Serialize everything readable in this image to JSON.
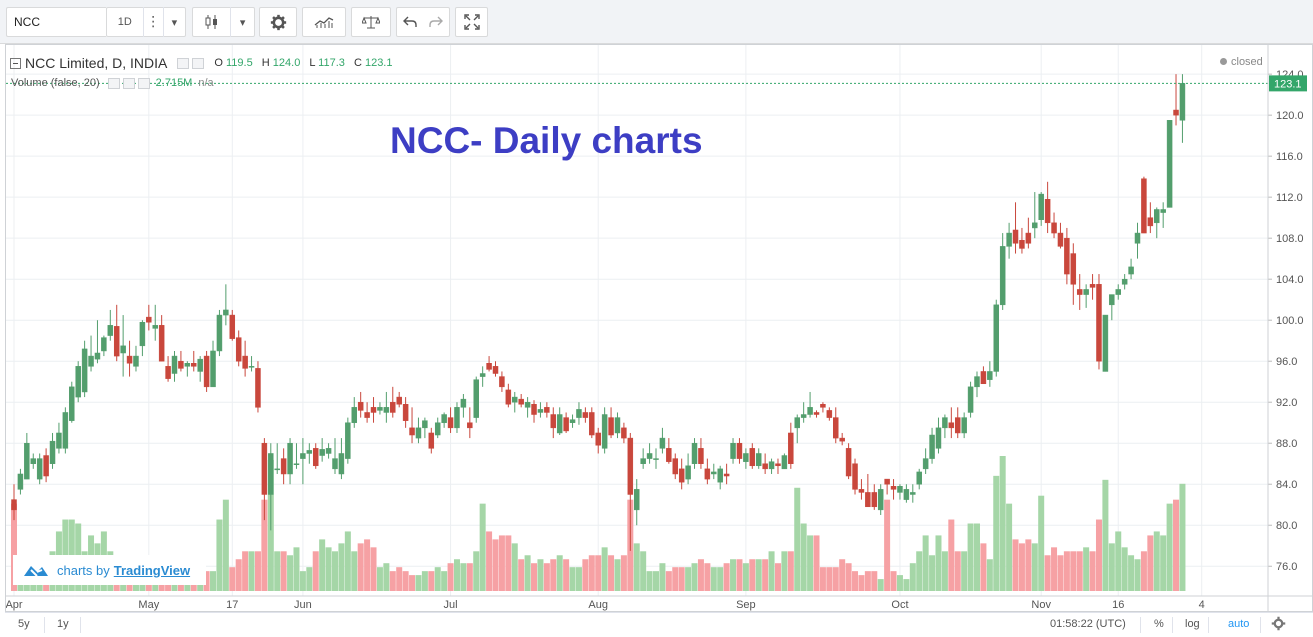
{
  "toolbar": {
    "symbol_value": "NCC",
    "interval": "1D",
    "menu_dots": "⋮",
    "dropdown": "▾"
  },
  "legend": {
    "title": "NCC Limited, D, INDIA",
    "open_label": "O",
    "open": "119.5",
    "high_label": "H",
    "high": "124.0",
    "low_label": "L",
    "low": "117.3",
    "close_label": "C",
    "close": "123.1",
    "volume_label": "Volume (false, 20)",
    "volume_value": "2.715M",
    "volume_ma": "n/a",
    "status": "closed"
  },
  "overlay_title": "NCC- Daily charts",
  "branding": {
    "prefix": "charts by",
    "name": "TradingView"
  },
  "bottom_bar": {
    "range_5y": "5y",
    "range_1y": "1y",
    "time": "01:58:22 (UTC)",
    "percent": "%",
    "log": "log",
    "auto": "auto"
  },
  "colors": {
    "up": "#539e6d",
    "down": "#c9473c",
    "up_volume": "#a5d6a7",
    "down_volume": "#f6a1a4",
    "accent": "#2196f3",
    "overlay_text": "#3d3ec4"
  },
  "chart_data": {
    "type": "candlestick",
    "y_axis": {
      "min": 73,
      "max": 124.6,
      "ticks": [
        76.0,
        80.0,
        84.0,
        88.0,
        92.0,
        96.0,
        100.0,
        104.0,
        108.0,
        112.0,
        116.0,
        120.0,
        124.0
      ]
    },
    "last_price": "123.1",
    "x_ticks": [
      {
        "label": "Apr",
        "index": 0
      },
      {
        "label": "May",
        "index": 21
      },
      {
        "label": "17",
        "index": 34
      },
      {
        "label": "Jun",
        "index": 45
      },
      {
        "label": "Jul",
        "index": 68
      },
      {
        "label": "Aug",
        "index": 91
      },
      {
        "label": "Sep",
        "index": 114
      },
      {
        "label": "Oct",
        "index": 138
      },
      {
        "label": "Nov",
        "index": 160
      },
      {
        "label": "16",
        "index": 172
      },
      {
        "label": "4",
        "index": 185
      }
    ],
    "candles": [
      [
        82.5,
        84,
        80.5,
        81.5,
        2.2
      ],
      [
        83.5,
        85.5,
        83,
        85,
        0.8
      ],
      [
        84.5,
        89,
        84.5,
        88,
        0.6
      ],
      [
        86,
        87,
        85.5,
        86.5,
        0.7
      ],
      [
        84.5,
        87,
        84,
        86.5,
        0.9
      ],
      [
        86.8,
        87.5,
        84.2,
        84.8,
        0.7
      ],
      [
        86,
        89,
        85.5,
        88.2,
        1.0
      ],
      [
        87.5,
        90,
        87,
        89,
        1.5
      ],
      [
        87.5,
        91.5,
        87,
        91,
        1.8
      ],
      [
        90.2,
        94,
        90,
        93.5,
        1.8
      ],
      [
        92.5,
        96,
        92,
        95.5,
        1.7
      ],
      [
        93,
        98,
        92.5,
        97.2,
        1.0
      ],
      [
        95.5,
        98.5,
        95,
        96.5,
        1.4
      ],
      [
        96.2,
        100,
        95.8,
        96.8,
        1.2
      ],
      [
        97,
        98.5,
        96.5,
        98.3,
        1.5
      ],
      [
        98.5,
        101,
        98,
        99.5,
        1.0
      ],
      [
        99.4,
        101.5,
        96,
        96.5,
        0.8
      ],
      [
        96.8,
        100.5,
        94.5,
        97.5,
        0.6
      ],
      [
        96.5,
        98,
        94.5,
        95.8,
        0.5
      ],
      [
        95.5,
        97.5,
        95,
        96.5,
        0.4
      ],
      [
        97.5,
        100,
        96.5,
        99.8,
        0.5
      ],
      [
        100.3,
        101.5,
        99,
        99.8,
        0.5
      ],
      [
        99.2,
        101.5,
        98,
        99.5,
        0.4
      ],
      [
        99.5,
        100.5,
        96,
        96,
        0.3
      ],
      [
        95.5,
        96.5,
        94,
        94.3,
        0.4
      ],
      [
        94.8,
        97,
        94,
        96.5,
        0.3
      ],
      [
        96,
        97,
        95,
        95.3,
        0.4
      ],
      [
        95.5,
        96,
        94.5,
        95.8,
        0.3
      ],
      [
        95.8,
        97,
        95,
        95.5,
        0.4
      ],
      [
        95,
        96.5,
        94,
        96.2,
        0.3
      ],
      [
        96.5,
        97,
        93,
        93.5,
        0.5
      ],
      [
        93.5,
        98,
        93.5,
        97,
        0.5
      ],
      [
        97,
        101,
        96.5,
        100.5,
        1.8
      ],
      [
        100.5,
        103.5,
        99.5,
        101,
        2.3
      ],
      [
        100.5,
        101,
        98,
        98.2,
        0.6
      ],
      [
        98.3,
        99,
        95.5,
        96,
        0.8
      ],
      [
        96.5,
        98,
        94.5,
        95.3,
        1.0
      ],
      [
        95.5,
        96.5,
        95,
        95.5,
        1.0
      ],
      [
        95.3,
        96,
        91,
        91.5,
        1.0
      ],
      [
        88,
        88.5,
        80.5,
        83,
        2.3
      ],
      [
        83,
        88,
        79.5,
        87,
        3.3
      ],
      [
        85.5,
        88,
        85,
        85.5,
        1.0
      ],
      [
        86.5,
        87.5,
        84,
        85,
        1.0
      ],
      [
        85,
        88.5,
        84,
        88,
        0.9
      ],
      [
        86,
        88,
        85.5,
        86,
        1.1
      ],
      [
        86.5,
        88.5,
        84,
        87,
        0.5
      ],
      [
        87,
        88,
        86,
        87.3,
        0.6
      ],
      [
        87.5,
        88,
        85.5,
        85.8,
        1.0
      ],
      [
        86.8,
        88.5,
        86.2,
        87.4,
        1.3
      ],
      [
        87,
        88,
        86.5,
        87.5,
        1.1
      ],
      [
        85.5,
        88.5,
        85,
        86.5,
        1.0
      ],
      [
        85,
        88.5,
        84.5,
        87,
        1.2
      ],
      [
        86.5,
        90.5,
        86,
        90,
        1.5
      ],
      [
        90,
        92.5,
        89.5,
        91.5,
        1.0
      ],
      [
        92,
        93,
        90.5,
        91.2,
        1.2
      ],
      [
        91,
        92,
        90,
        90.5,
        1.3
      ],
      [
        91.5,
        92.5,
        90,
        91,
        1.1
      ],
      [
        91.2,
        92,
        90.8,
        91.5,
        0.6
      ],
      [
        91,
        93,
        90,
        91.5,
        0.7
      ],
      [
        92,
        93.5,
        90.5,
        91,
        0.5
      ],
      [
        92.5,
        93,
        91.5,
        91.8,
        0.6
      ],
      [
        91.8,
        92.5,
        89.5,
        90.2,
        0.5
      ],
      [
        89.5,
        91.5,
        88,
        88.8,
        0.4
      ],
      [
        88.5,
        90.5,
        88,
        89.5,
        0.4
      ],
      [
        89.5,
        90.5,
        88.5,
        90.2,
        0.5
      ],
      [
        89,
        89.5,
        87,
        87.5,
        0.5
      ],
      [
        88.8,
        90.5,
        88.5,
        90,
        0.6
      ],
      [
        90,
        91,
        89.5,
        90.8,
        0.5
      ],
      [
        90.5,
        91.5,
        89,
        89.5,
        0.7
      ],
      [
        89.5,
        92,
        89,
        91.5,
        0.8
      ],
      [
        91.5,
        92.8,
        90.5,
        92.3,
        0.7
      ],
      [
        90,
        91.5,
        88.5,
        89.5,
        0.7
      ],
      [
        90.5,
        94.5,
        90,
        94.2,
        1.0
      ],
      [
        94.5,
        95.5,
        93.5,
        94.8,
        2.2
      ],
      [
        95.8,
        96.5,
        95,
        95.2,
        1.5
      ],
      [
        95.5,
        96,
        94.5,
        94.8,
        1.3
      ],
      [
        94.5,
        95,
        93,
        93.5,
        1.4
      ],
      [
        93.2,
        93.8,
        91.5,
        91.8,
        1.4
      ],
      [
        92,
        93,
        91,
        92.5,
        1.2
      ],
      [
        92.3,
        92.8,
        91.5,
        91.8,
        0.8
      ],
      [
        91.5,
        92.5,
        90.5,
        92,
        0.9
      ],
      [
        91.8,
        92.2,
        90,
        90.8,
        0.7
      ],
      [
        91,
        92,
        90.5,
        91.3,
        0.8
      ],
      [
        91.5,
        92,
        90.5,
        91,
        0.7
      ],
      [
        90.8,
        91.5,
        88.5,
        89.5,
        0.8
      ],
      [
        89,
        91.5,
        88.8,
        90.8,
        0.9
      ],
      [
        90.5,
        91,
        89,
        89.2,
        0.8
      ],
      [
        90,
        90.8,
        89.5,
        90.3,
        0.6
      ],
      [
        90.5,
        92,
        89.8,
        91.3,
        0.6
      ],
      [
        91,
        91.5,
        90,
        90.5,
        0.8
      ],
      [
        91,
        91.5,
        88.5,
        88.8,
        0.9
      ],
      [
        89,
        89.5,
        87,
        87.8,
        0.9
      ],
      [
        87.5,
        91.5,
        87,
        90.8,
        1.1
      ],
      [
        90.5,
        91.5,
        88.5,
        88.8,
        0.9
      ],
      [
        89,
        91,
        88.5,
        90.5,
        0.8
      ],
      [
        89.5,
        90,
        88,
        88.5,
        0.9
      ],
      [
        88.5,
        89,
        77.5,
        83,
        2.3
      ],
      [
        81.5,
        84.5,
        80,
        83.5,
        1.2
      ],
      [
        86,
        87.5,
        85.5,
        86.5,
        1.0
      ],
      [
        86.5,
        88,
        86,
        87,
        0.5
      ],
      [
        86.5,
        87.5,
        85.5,
        86.5,
        0.5
      ],
      [
        87.5,
        89.5,
        87,
        88.5,
        0.7
      ],
      [
        87.5,
        88.5,
        86,
        86.2,
        0.5
      ],
      [
        86.5,
        87,
        84.5,
        85,
        0.6
      ],
      [
        85.5,
        86.5,
        83.5,
        84.2,
        0.6
      ],
      [
        84.5,
        87,
        84,
        85.8,
        0.6
      ],
      [
        86,
        88.5,
        85.5,
        88,
        0.7
      ],
      [
        87.5,
        88.5,
        85.5,
        86,
        0.8
      ],
      [
        85.5,
        86.5,
        84,
        84.5,
        0.7
      ],
      [
        85,
        86,
        84.5,
        85.2,
        0.6
      ],
      [
        84.2,
        85.8,
        83.5,
        85.5,
        0.6
      ],
      [
        85,
        86,
        84,
        84.8,
        0.7
      ],
      [
        86.5,
        88.5,
        86,
        88,
        0.8
      ],
      [
        88,
        88.5,
        86,
        86.5,
        0.8
      ],
      [
        86.2,
        87.5,
        85.5,
        87,
        0.7
      ],
      [
        87.5,
        88,
        85.5,
        85.8,
        0.8
      ],
      [
        85.8,
        87.5,
        85.5,
        87,
        0.8
      ],
      [
        86,
        87,
        85,
        85.5,
        0.8
      ],
      [
        85.5,
        86.5,
        85,
        86.2,
        1.0
      ],
      [
        86,
        86.5,
        85,
        85.8,
        0.7
      ],
      [
        85.5,
        87,
        85.5,
        86.8,
        1.0
      ],
      [
        89,
        90,
        85.5,
        86,
        1.0
      ],
      [
        89.5,
        90.8,
        88,
        90.5,
        2.6
      ],
      [
        90.5,
        92,
        90,
        90.8,
        1.7
      ],
      [
        90.8,
        93,
        90.5,
        91.5,
        1.4
      ],
      [
        91,
        91.2,
        90.5,
        90.8,
        1.4
      ],
      [
        91.8,
        92,
        91,
        91.5,
        0.6
      ],
      [
        91.2,
        91.5,
        90.2,
        90.5,
        0.6
      ],
      [
        90.5,
        91.5,
        88,
        88.5,
        0.6
      ],
      [
        88.5,
        89,
        87.8,
        88.2,
        0.8
      ],
      [
        87.5,
        88,
        84.5,
        84.8,
        0.7
      ],
      [
        86,
        86.5,
        83,
        83.5,
        0.5
      ],
      [
        83.5,
        84.5,
        82.5,
        83.2,
        0.4
      ],
      [
        83.2,
        85,
        81.8,
        81.8,
        0.5
      ],
      [
        83.2,
        84,
        81.5,
        81.8,
        0.5
      ],
      [
        81.5,
        84,
        81,
        83.5,
        0.3
      ],
      [
        84.5,
        84.5,
        83,
        84,
        2.3
      ],
      [
        83.8,
        84.5,
        82.5,
        83.5,
        0.5
      ],
      [
        83.2,
        84,
        82.5,
        83.8,
        0.4
      ],
      [
        82.5,
        84,
        82.2,
        83.5,
        0.3
      ],
      [
        83,
        84,
        82.2,
        83.2,
        0.7
      ],
      [
        84,
        85.5,
        83.5,
        85.2,
        1.0
      ],
      [
        85.5,
        87.5,
        85,
        86.5,
        1.4
      ],
      [
        86.5,
        89.5,
        86,
        88.8,
        0.9
      ],
      [
        87.5,
        90.5,
        87,
        89.5,
        1.4
      ],
      [
        89.5,
        90.8,
        88.5,
        90.5,
        1.0
      ],
      [
        90,
        91.5,
        88.5,
        89.5,
        1.8
      ],
      [
        90.5,
        91.5,
        88.5,
        89,
        1.0
      ],
      [
        89,
        91,
        88.5,
        90.5,
        1.0
      ],
      [
        91,
        94,
        90.5,
        93.5,
        1.7
      ],
      [
        93.5,
        95,
        92.5,
        94.5,
        1.7
      ],
      [
        95,
        95.5,
        93.8,
        93.8,
        1.2
      ],
      [
        94.2,
        96,
        93.5,
        95,
        0.8
      ],
      [
        95,
        102,
        94.5,
        101.5,
        2.9
      ],
      [
        101.5,
        108.5,
        101,
        107.2,
        3.4
      ],
      [
        107.2,
        109.5,
        106,
        108.5,
        2.2
      ],
      [
        108.8,
        111.5,
        106.5,
        107.5,
        1.3
      ],
      [
        107.8,
        109,
        106.5,
        107,
        1.2
      ],
      [
        108.5,
        110,
        107,
        107.5,
        1.3
      ],
      [
        109,
        112.5,
        108,
        109.5,
        1.2
      ],
      [
        109.8,
        112.5,
        109.2,
        112.3,
        2.4
      ],
      [
        111.8,
        113.5,
        108.5,
        109.5,
        0.9
      ],
      [
        109.5,
        110.5,
        108,
        108.5,
        1.1
      ],
      [
        108.5,
        109.5,
        107,
        107.2,
        0.9
      ],
      [
        108,
        109,
        103.5,
        104.5,
        1.0
      ],
      [
        106.5,
        107.5,
        101.5,
        103.5,
        1.0
      ],
      [
        103,
        104.5,
        101,
        102.5,
        1.0
      ],
      [
        102.5,
        103.5,
        101.2,
        103,
        1.1
      ],
      [
        103.5,
        104.5,
        102,
        103.2,
        1.0
      ],
      [
        103.5,
        104.5,
        95.2,
        96,
        1.8
      ],
      [
        95,
        100.5,
        95,
        100.5,
        2.8
      ],
      [
        101.5,
        102.5,
        100,
        102.5,
        1.2
      ],
      [
        102.5,
        103.5,
        102,
        103,
        1.5
      ],
      [
        103.5,
        104.5,
        103,
        104,
        1.1
      ],
      [
        104.5,
        106,
        104,
        105.2,
        0.9
      ],
      [
        107.5,
        109.5,
        106,
        108.5,
        0.8
      ],
      [
        113.8,
        114,
        108.5,
        108.5,
        1.0
      ],
      [
        110,
        111.5,
        108.5,
        109.2,
        1.4
      ],
      [
        109.5,
        111,
        108,
        110.8,
        1.5
      ],
      [
        110.5,
        111.5,
        109,
        110.8,
        1.4
      ],
      [
        111,
        119.5,
        111,
        119.5,
        2.2
      ],
      [
        120.5,
        124,
        119,
        120,
        2.3
      ],
      [
        119.5,
        124,
        117.3,
        123.1,
        2.7
      ]
    ]
  }
}
